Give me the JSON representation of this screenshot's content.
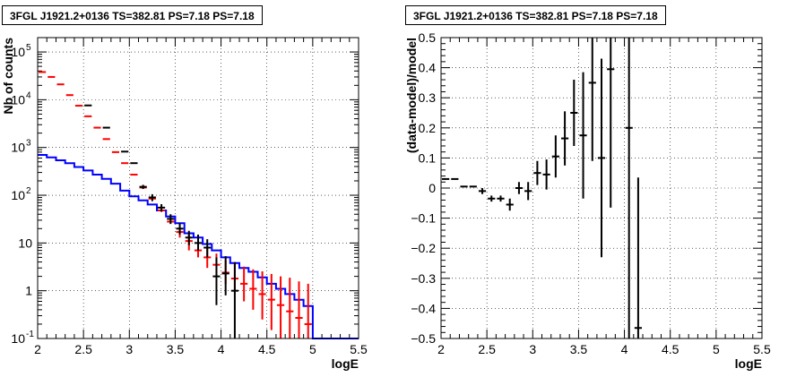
{
  "chart_data": [
    {
      "type": "scatter",
      "title": "3FGL J1921.2+0136 TS=382.81 PS=7.18 PS=7.18",
      "xlabel": "logE",
      "ylabel": "Nb of counts",
      "xlim": [
        2,
        5.5
      ],
      "ylim": [
        0.1,
        200000
      ],
      "yscale": "log",
      "grid": true,
      "xticks": [
        {
          "v": 2,
          "label": "2"
        },
        {
          "v": 2.5,
          "label": "2.5"
        },
        {
          "v": 3,
          "label": "3"
        },
        {
          "v": 3.5,
          "label": "3.5"
        },
        {
          "v": 4,
          "label": "4"
        },
        {
          "v": 4.5,
          "label": "4.5"
        },
        {
          "v": 5,
          "label": "5"
        },
        {
          "v": 5.5,
          "label": "5.5"
        }
      ],
      "yticks": [
        {
          "v": 0.1,
          "base": "10",
          "exp": "-1"
        },
        {
          "v": 1,
          "base": "1",
          "exp": ""
        },
        {
          "v": 10,
          "base": "10",
          "exp": ""
        },
        {
          "v": 100,
          "base": "10",
          "exp": "2"
        },
        {
          "v": 1000,
          "base": "10",
          "exp": "3"
        },
        {
          "v": 10000,
          "base": "10",
          "exp": "4"
        },
        {
          "v": 100000,
          "base": "10",
          "exp": "5"
        }
      ],
      "series": [
        {
          "kind": "step",
          "color": "#0000ff",
          "x_edges": [
            2.0,
            2.1,
            2.2,
            2.3,
            2.4,
            2.5,
            2.6,
            2.7,
            2.8,
            2.9,
            3.0,
            3.1,
            3.2,
            3.3,
            3.4,
            3.5,
            3.6,
            3.7,
            3.8,
            3.9,
            4.0,
            4.1,
            4.2,
            4.3,
            4.4,
            4.5,
            4.6,
            4.7,
            4.8,
            4.9,
            5.0,
            5.1,
            5.2,
            5.3,
            5.4,
            5.5
          ],
          "values": [
            700,
            620,
            540,
            470,
            390,
            330,
            270,
            220,
            175,
            125,
            95,
            78,
            64,
            48,
            36,
            26,
            16,
            13,
            9.5,
            7,
            5,
            3.8,
            3.0,
            2.5,
            1.9,
            1.4,
            1.1,
            0.85,
            0.65,
            0.48,
            0.1,
            0.1,
            0.1,
            0.1,
            0.1
          ]
        },
        {
          "kind": "errorbar",
          "color": "#ff0000",
          "x": [
            2.05,
            2.15,
            2.25,
            2.35,
            2.45,
            2.55,
            2.65,
            2.75,
            2.85,
            2.95,
            3.05,
            3.15,
            3.25,
            3.35,
            3.45,
            3.55,
            3.65,
            3.75,
            3.85,
            3.95,
            4.05,
            4.15,
            4.25,
            4.35,
            4.45,
            4.55,
            4.65,
            4.75,
            4.85,
            4.95
          ],
          "y": [
            38000,
            30000,
            21000,
            12500,
            7500,
            4500,
            2600,
            1500,
            800,
            470,
            270,
            145,
            85,
            48,
            28,
            17,
            11,
            7,
            5,
            3.5,
            2.4,
            1.8,
            1.4,
            1.1,
            0.85,
            0.65,
            0.5,
            0.37,
            0.27,
            0.2
          ],
          "yerr_low": [
            0,
            0,
            0,
            0,
            0,
            0,
            0,
            0,
            0,
            0,
            0,
            0,
            0,
            0,
            0,
            4,
            4,
            2,
            2,
            1.5,
            1,
            0.9,
            0.8,
            0.7,
            0.6,
            0.5,
            0.4,
            0.3,
            0.22,
            0.17
          ],
          "yerr_high": [
            0,
            0,
            0,
            0,
            0,
            0,
            0,
            0,
            0,
            0,
            0,
            0,
            0,
            0,
            0,
            5,
            4,
            3,
            3,
            2.5,
            2,
            2,
            1.8,
            1.7,
            1.7,
            1.6,
            1.5,
            1.5,
            1.3,
            1.2
          ]
        },
        {
          "kind": "errorbar",
          "color": "#000000",
          "x": [
            2.55,
            2.75,
            2.95,
            3.05,
            3.15,
            3.25,
            3.35,
            3.45,
            3.55,
            3.65,
            3.75,
            3.85,
            3.95,
            4.05,
            4.15
          ],
          "y": [
            7600,
            2600,
            820,
            470,
            150,
            90,
            55,
            32,
            20,
            13,
            10,
            8,
            2,
            2.3,
            1
          ],
          "yerr_low": [
            0,
            0,
            0,
            0,
            15,
            15,
            10,
            7,
            5,
            4,
            3,
            3,
            1.5,
            1.5,
            0.9
          ],
          "yerr_high": [
            0,
            0,
            0,
            0,
            15,
            15,
            10,
            8,
            6,
            5,
            5,
            4,
            3,
            3,
            3
          ]
        }
      ]
    },
    {
      "type": "scatter",
      "title": "3FGL J1921.2+0136 TS=382.81 PS=7.18 PS=7.18",
      "xlabel": "logE",
      "ylabel": "(data-model)/model",
      "xlim": [
        2,
        5.5
      ],
      "ylim": [
        -0.5,
        0.5
      ],
      "grid": true,
      "xticks": [
        {
          "v": 2,
          "label": "2"
        },
        {
          "v": 2.5,
          "label": "2.5"
        },
        {
          "v": 3,
          "label": "3"
        },
        {
          "v": 3.5,
          "label": "3.5"
        },
        {
          "v": 4,
          "label": "4"
        },
        {
          "v": 4.5,
          "label": "4.5"
        },
        {
          "v": 5,
          "label": "5"
        },
        {
          "v": 5.5,
          "label": "5.5"
        }
      ],
      "yticks": [
        {
          "v": -0.5,
          "label": "−0.5"
        },
        {
          "v": -0.4,
          "label": "−0.4"
        },
        {
          "v": -0.3,
          "label": "−0.3"
        },
        {
          "v": -0.2,
          "label": "−0.2"
        },
        {
          "v": -0.1,
          "label": "−0.1"
        },
        {
          "v": 0,
          "label": "0"
        },
        {
          "v": 0.1,
          "label": "0.1"
        },
        {
          "v": 0.2,
          "label": "0.2"
        },
        {
          "v": 0.3,
          "label": "0.3"
        },
        {
          "v": 0.4,
          "label": "0.4"
        },
        {
          "v": 0.5,
          "label": "0.5"
        }
      ],
      "series": [
        {
          "kind": "errorbar",
          "color": "#000000",
          "x": [
            2.05,
            2.15,
            2.25,
            2.35,
            2.45,
            2.55,
            2.65,
            2.75,
            2.85,
            2.95,
            3.05,
            3.15,
            3.25,
            3.35,
            3.45,
            3.55,
            3.65,
            3.75,
            3.85,
            4.05,
            4.15
          ],
          "y": [
            0.03,
            0.03,
            0.005,
            0.005,
            -0.01,
            -0.035,
            -0.035,
            -0.055,
            0.0,
            -0.01,
            0.05,
            0.045,
            0.105,
            0.165,
            0.25,
            0.175,
            0.35,
            0.1,
            0.395,
            0.2,
            -0.465
          ],
          "yerr_low": [
            0,
            0,
            0,
            0,
            0.01,
            0.01,
            0.01,
            0.02,
            0.02,
            0.03,
            0.04,
            0.05,
            0.07,
            0.09,
            0.11,
            0.21,
            0.26,
            0.33,
            0.46,
            0.75,
            0.5
          ],
          "yerr_high": [
            0,
            0,
            0,
            0,
            0.01,
            0.01,
            0.01,
            0.02,
            0.02,
            0.03,
            0.04,
            0.05,
            0.07,
            0.09,
            0.11,
            0.21,
            0.26,
            0.33,
            0.46,
            0.75,
            0.5
          ]
        }
      ]
    }
  ]
}
